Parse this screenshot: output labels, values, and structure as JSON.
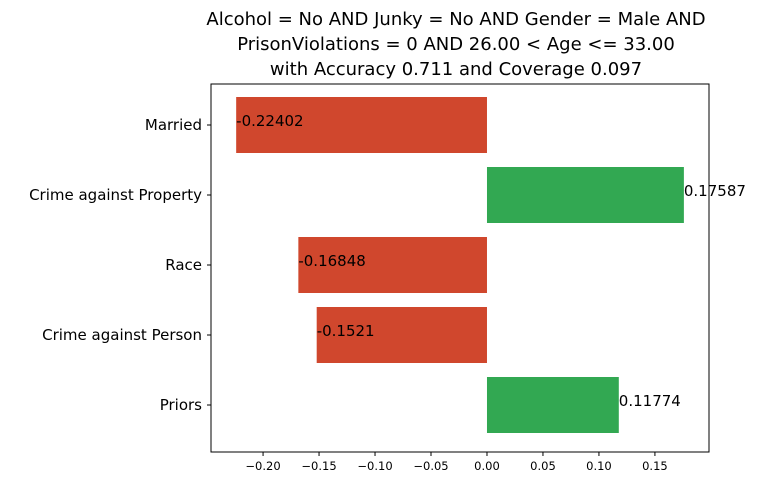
{
  "chart_data": {
    "type": "bar",
    "orientation": "horizontal",
    "title_lines": [
      "Alcohol = No AND Junky = No AND Gender = Male AND",
      "PrisonViolations = 0 AND 26.00 < Age <= 33.00",
      "with Accuracy 0.711 and Coverage 0.097"
    ],
    "categories": [
      "Married",
      "Crime against Property",
      "Race",
      "Crime against Person",
      "Priors"
    ],
    "values": [
      -0.22402,
      0.17587,
      -0.16848,
      -0.1521,
      0.11774
    ],
    "value_labels": [
      "-0.22402",
      "0.17587",
      "-0.16848",
      "-0.1521",
      "0.11774"
    ],
    "xticks": [
      -0.2,
      -0.15,
      -0.1,
      -0.05,
      0.0,
      0.05,
      0.1,
      0.15
    ],
    "xtick_labels": [
      "−0.20",
      "−0.15",
      "−0.10",
      "−0.05",
      "0.00",
      "0.05",
      "0.10",
      "0.15"
    ],
    "xlim": [
      -0.2465,
      0.1983
    ],
    "grid": false,
    "colors": {
      "negative": "#d0472d",
      "positive": "#32a852"
    }
  }
}
